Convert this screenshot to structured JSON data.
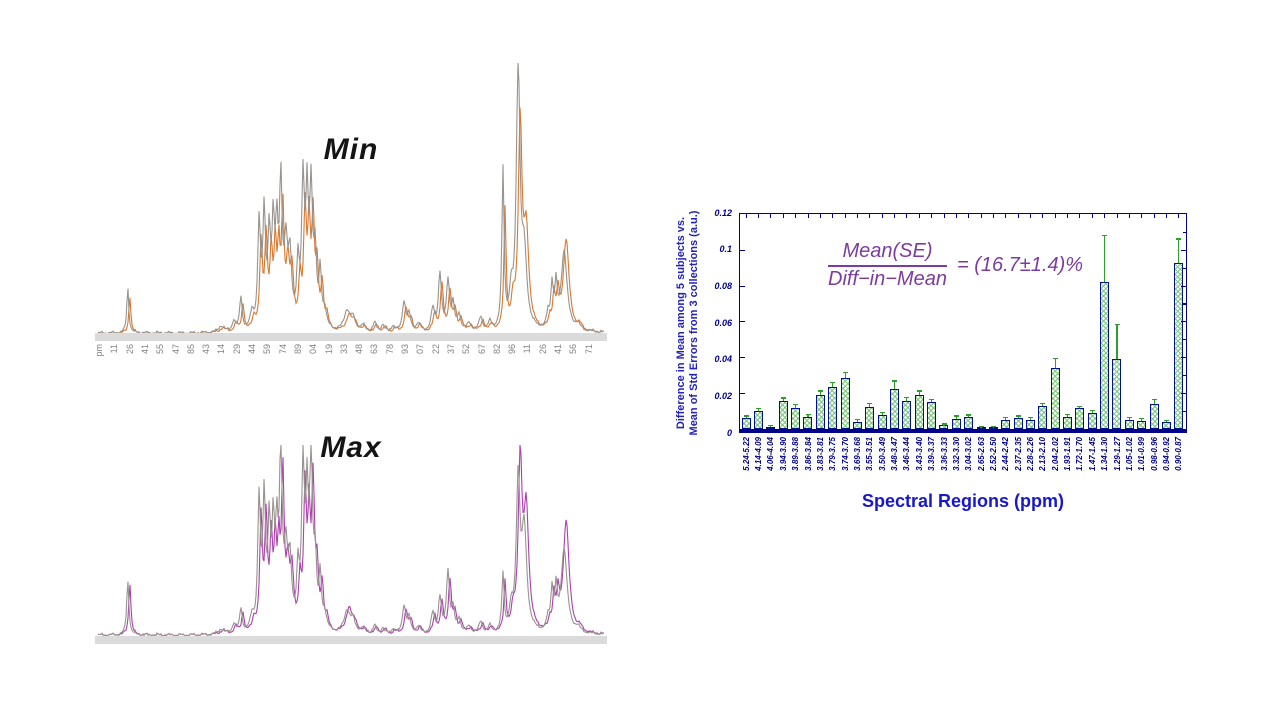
{
  "figure": {
    "background": "#FFFFFF"
  },
  "chart_data": [
    {
      "id": "min-spectrum",
      "type": "line",
      "title": "Min",
      "x_axis_unit_hint": "ppm",
      "x_tick_labels": [
        "pm",
        "11",
        "26",
        "41",
        "55",
        "47",
        "85",
        "43",
        "14",
        "29",
        "44",
        "59",
        "74",
        "89",
        "04",
        "19",
        "33",
        "48",
        "63",
        "78",
        "93",
        "07",
        "22",
        "37",
        "52",
        "67",
        "82",
        "96",
        "11",
        "26",
        "41",
        "56",
        "71"
      ],
      "series": [
        {
          "name": "collection-accent",
          "color": "#D9782E",
          "derive_from_main": {
            "scale": 0.8,
            "dx": 0.004,
            "overrides": {
              "37": 120,
              "39": 205,
              "40": 95,
              "44": 92
            }
          }
        },
        {
          "name": "collection-main",
          "color": "#98938E",
          "peaks": [
            [
              0.059,
              46,
              1.2
            ],
            [
              0.244,
              6,
              3
            ],
            [
              0.269,
              10,
              2
            ],
            [
              0.283,
              34,
              1.5
            ],
            [
              0.305,
              16,
              2
            ],
            [
              0.319,
              105,
              1.6
            ],
            [
              0.329,
              112,
              1.6
            ],
            [
              0.339,
              88,
              1.6
            ],
            [
              0.347,
              95,
              1.5
            ],
            [
              0.354,
              90,
              1.5
            ],
            [
              0.362,
              140,
              1.6
            ],
            [
              0.372,
              75,
              2
            ],
            [
              0.38,
              68,
              2
            ],
            [
              0.396,
              60,
              1.5
            ],
            [
              0.406,
              143,
              1.7
            ],
            [
              0.414,
              120,
              1.5
            ],
            [
              0.422,
              135,
              1.7
            ],
            [
              0.43,
              70,
              1.6
            ],
            [
              0.44,
              55,
              1.5
            ],
            [
              0.449,
              18,
              2
            ],
            [
              0.493,
              20,
              3.5
            ],
            [
              0.505,
              12,
              3
            ],
            [
              0.525,
              6,
              2.5
            ],
            [
              0.548,
              9,
              2
            ],
            [
              0.564,
              7,
              2
            ],
            [
              0.584,
              6,
              2
            ],
            [
              0.606,
              30,
              2
            ],
            [
              0.616,
              16,
              2
            ],
            [
              0.634,
              8,
              2.5
            ],
            [
              0.663,
              22,
              2
            ],
            [
              0.677,
              58,
              1.8
            ],
            [
              0.693,
              50,
              1.8
            ],
            [
              0.703,
              25,
              1.8
            ],
            [
              0.715,
              16,
              2
            ],
            [
              0.735,
              8,
              2.5
            ],
            [
              0.758,
              14,
              2
            ],
            [
              0.776,
              8,
              2
            ],
            [
              0.802,
              160,
              1.3
            ],
            [
              0.818,
              30,
              2
            ],
            [
              0.832,
              262,
              2.2
            ],
            [
              0.844,
              70,
              3
            ],
            [
              0.891,
              14,
              1.5
            ],
            [
              0.899,
              42,
              1.5
            ],
            [
              0.907,
              40,
              1.5
            ],
            [
              0.923,
              80,
              3.5
            ],
            [
              0.95,
              6,
              3
            ]
          ]
        }
      ]
    },
    {
      "id": "max-spectrum",
      "type": "line",
      "title": "Max",
      "x_tick_labels": [],
      "series": [
        {
          "name": "collection-accent",
          "color": "#AC3FAE",
          "derive_from_main": {
            "scale": 0.85,
            "dx": 0.004,
            "overrides": {
              "0": 52,
              "20": 25,
              "39": 170,
              "40": 120,
              "44": 113
            }
          }
        },
        {
          "name": "collection-main",
          "color": "#98938E",
          "peaks": [
            [
              0.059,
              55,
              1.3
            ],
            [
              0.244,
              5,
              3
            ],
            [
              0.269,
              9,
              2
            ],
            [
              0.283,
              24,
              1.5
            ],
            [
              0.305,
              14,
              2
            ],
            [
              0.319,
              130,
              1.6
            ],
            [
              0.329,
              128,
              1.6
            ],
            [
              0.339,
              100,
              1.6
            ],
            [
              0.347,
              95,
              1.5
            ],
            [
              0.354,
              88,
              1.5
            ],
            [
              0.362,
              176,
              1.6
            ],
            [
              0.372,
              70,
              2
            ],
            [
              0.38,
              65,
              2
            ],
            [
              0.396,
              55,
              1.5
            ],
            [
              0.406,
              160,
              1.7
            ],
            [
              0.414,
              120,
              1.5
            ],
            [
              0.422,
              168,
              1.7
            ],
            [
              0.43,
              65,
              1.6
            ],
            [
              0.44,
              52,
              1.5
            ],
            [
              0.449,
              16,
              2
            ],
            [
              0.493,
              22,
              3.5
            ],
            [
              0.505,
              12,
              3
            ],
            [
              0.525,
              5,
              2.5
            ],
            [
              0.548,
              8,
              2
            ],
            [
              0.564,
              6,
              2
            ],
            [
              0.584,
              5,
              2
            ],
            [
              0.606,
              28,
              2
            ],
            [
              0.616,
              15,
              2
            ],
            [
              0.634,
              7,
              2.5
            ],
            [
              0.663,
              20,
              2
            ],
            [
              0.677,
              36,
              1.8
            ],
            [
              0.693,
              62,
              1.8
            ],
            [
              0.703,
              22,
              1.8
            ],
            [
              0.715,
              14,
              2
            ],
            [
              0.735,
              7,
              2.5
            ],
            [
              0.758,
              12,
              2
            ],
            [
              0.776,
              7,
              2
            ],
            [
              0.802,
              58,
              1.3
            ],
            [
              0.818,
              20,
              2
            ],
            [
              0.832,
              150,
              2.2
            ],
            [
              0.844,
              100,
              3
            ],
            [
              0.891,
              12,
              1.5
            ],
            [
              0.899,
              40,
              1.5
            ],
            [
              0.907,
              38,
              1.5
            ],
            [
              0.923,
              85,
              3.5
            ],
            [
              0.95,
              5,
              3
            ]
          ]
        }
      ]
    },
    {
      "id": "se-vs-diff-bar-chart",
      "type": "bar",
      "categories": [
        "5.24-5.22",
        "4.14-4.09",
        "4.06-4.04",
        "3.94-3.90",
        "3.89-3.88",
        "3.86-3.84",
        "3.83-3.81",
        "3.79-3.75",
        "3.74-3.70",
        "3.69-3.68",
        "3.55-3.51",
        "3.50-3.49",
        "3.48-3.47",
        "3.46-3.44",
        "3.43-3.40",
        "3.39-3.37",
        "3.36-3.33",
        "3.32-3.30",
        "3.04-3.02",
        "2.65-2.63",
        "2.52-2.50",
        "2.44-2.42",
        "2.37-2.35",
        "2.28-2.26",
        "2.13-2.10",
        "2.04-2.02",
        "1.93-1.91",
        "1.72-1.70",
        "1.47-1.45",
        "1.34-1.30",
        "1.29-1.27",
        "1.05-1.02",
        "1.01-0.99",
        "0.98-0.96",
        "0.94-0.92",
        "0.90-0.87"
      ],
      "values": [
        0.006,
        0.01,
        0.001,
        0.0155,
        0.012,
        0.007,
        0.019,
        0.0235,
        0.0285,
        0.004,
        0.0125,
        0.008,
        0.0225,
        0.0155,
        0.019,
        0.015,
        0.002,
        0.0055,
        0.0065,
        0.001,
        0.001,
        0.005,
        0.006,
        0.005,
        0.013,
        0.034,
        0.007,
        0.0115,
        0.009,
        0.082,
        0.039,
        0.005,
        0.0045,
        0.014,
        0.004,
        0.093
      ],
      "errors": [
        0.001,
        0.001,
        0.0005,
        0.0015,
        0.0015,
        0.001,
        0.002,
        0.002,
        0.003,
        0.001,
        0.0015,
        0.001,
        0.004,
        0.002,
        0.002,
        0.001,
        0.0005,
        0.0015,
        0.001,
        0.0003,
        0.0003,
        0.001,
        0.001,
        0.001,
        0.001,
        0.005,
        0.001,
        0.001,
        0.001,
        0.026,
        0.019,
        0.001,
        0.001,
        0.002,
        0.0005,
        0.013
      ],
      "ylim": [
        0,
        0.12
      ],
      "yticks": [
        "0",
        "0.02",
        "0.04",
        "0.06",
        "0.08",
        "0.1",
        "0.12"
      ],
      "ylabel_lines": [
        "Difference in Mean among 5 subjects vs.",
        "Mean of Std Errors from 3 collections (a.u.)"
      ],
      "xlabel": "Spectral Regions (ppm)",
      "annotation": {
        "numerator": "Mean(SE)",
        "denominator": "Diff−in−Mean",
        "rhs": "= (16.7±1.4)%"
      },
      "style": {
        "frame": "#00008B",
        "bar_border": "#00128C",
        "hatch": "#7CC87C",
        "error_color": "#2E9E2E",
        "label_color": "#00008B",
        "title_color": "#1717CC",
        "annotation_color": "#7B3C9E"
      }
    }
  ]
}
